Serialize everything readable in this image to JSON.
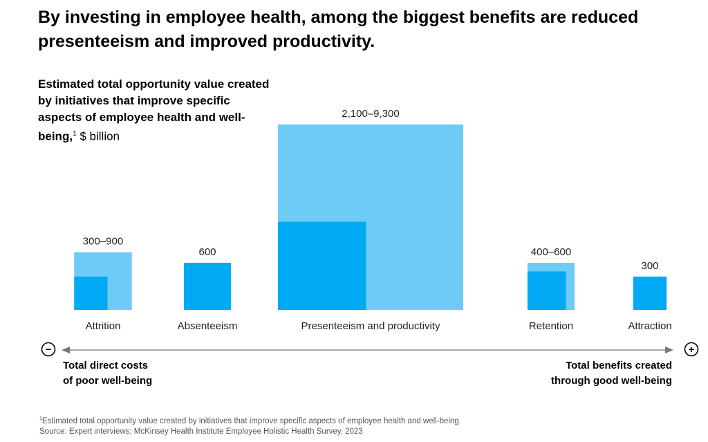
{
  "headline": "By investing in employee health, among the biggest benefits are reduced presenteeism and improved productivity.",
  "subtitle": {
    "text": "Estimated total opportunity value created by initiatives that improve specific aspects of employee health and well-being,",
    "footnote_mark": "1",
    "unit": "$ billion"
  },
  "colors": {
    "light": "#6ECBF5",
    "dark": "#00A9F4",
    "axis": "#777777"
  },
  "chart_data": {
    "type": "area",
    "encoding": "square area proportional to value; light square = high estimate, dark square = low estimate",
    "categories": [
      {
        "name": "Attrition",
        "label": "300–900",
        "low": 300,
        "high": 900
      },
      {
        "name": "Absenteeism",
        "label": "600",
        "low": 600,
        "high": 600
      },
      {
        "name": "Presenteeism and productivity",
        "label": "2,100–9,300",
        "low": 2100,
        "high": 9300
      },
      {
        "name": "Retention",
        "label": "400–600",
        "low": 400,
        "high": 600
      },
      {
        "name": "Attraction",
        "label": "300",
        "low": 300,
        "high": 300
      }
    ]
  },
  "axis": {
    "minus_symbol": "−",
    "plus_symbol": "+",
    "left_label_line1": "Total direct costs",
    "left_label_line2": "of poor well-being",
    "right_label_line1": "Total benefits created",
    "right_label_line2": "through good well-being"
  },
  "footnote": {
    "mark": "1",
    "note": "Estimated total opportunity value created by initiatives that improve specific aspects of employee health and well-being.",
    "source": "Source: Expert interviews; McKinsey Health Institute Employee Holistic Health Survey, 2023"
  }
}
